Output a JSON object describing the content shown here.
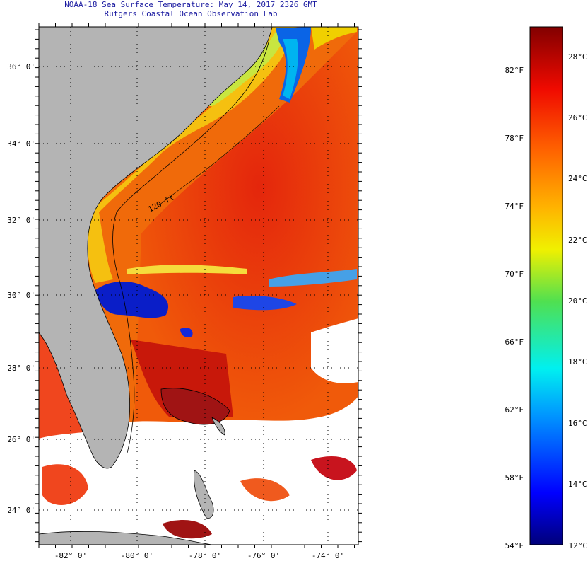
{
  "header": {
    "title": "NOAA-18 Sea Surface Temperature:  May 14, 2017 2326 GMT",
    "subtitle": "Rutgers Coastal Ocean Observation Lab"
  },
  "map": {
    "lat_labels": [
      "36° 0'",
      "34° 0'",
      "32° 0'",
      "30° 0'",
      "28° 0'",
      "26° 0'",
      "24° 0'"
    ],
    "lon_labels": [
      "-82° 0'",
      "-80° 0'",
      "-78° 0'",
      "-76° 0'",
      "-74° 0'"
    ],
    "depth_contour_label": "120 ft",
    "colors": {
      "land": "#b4b4b4",
      "cloud": "#ffffff",
      "gulf_stream": "#e8280f",
      "shelf": "#f5b40a"
    }
  },
  "colorbar": {
    "fahrenheit_labels": [
      "82°F",
      "78°F",
      "74°F",
      "70°F",
      "66°F",
      "62°F",
      "58°F",
      "54°F"
    ],
    "celsius_labels": [
      "28°C",
      "26°C",
      "24°C",
      "22°C",
      "20°C",
      "18°C",
      "16°C",
      "14°C",
      "12°C"
    ]
  }
}
